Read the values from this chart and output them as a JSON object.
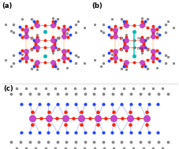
{
  "fig_width": 2.27,
  "fig_height": 1.89,
  "dpi": 100,
  "background_color": "#ffffff",
  "colors": {
    "mo": "#cc44cc",
    "mo_edge": "#993399",
    "o_red": "#ff2200",
    "o_red2": "#ee3300",
    "n_blue": "#2244ff",
    "c_gray": "#888888",
    "c_dark": "#555555",
    "h_white": "#dddddd",
    "teal": "#00bbbb",
    "teal_edge": "#009999",
    "orange_dash": "#ffaa44",
    "teal_line": "#00cccc",
    "bond_red": "#cc2200",
    "bond_gray": "#999999"
  },
  "panel_a_label": "(a)",
  "panel_b_label": "(b)",
  "panel_c_label": "(c)"
}
